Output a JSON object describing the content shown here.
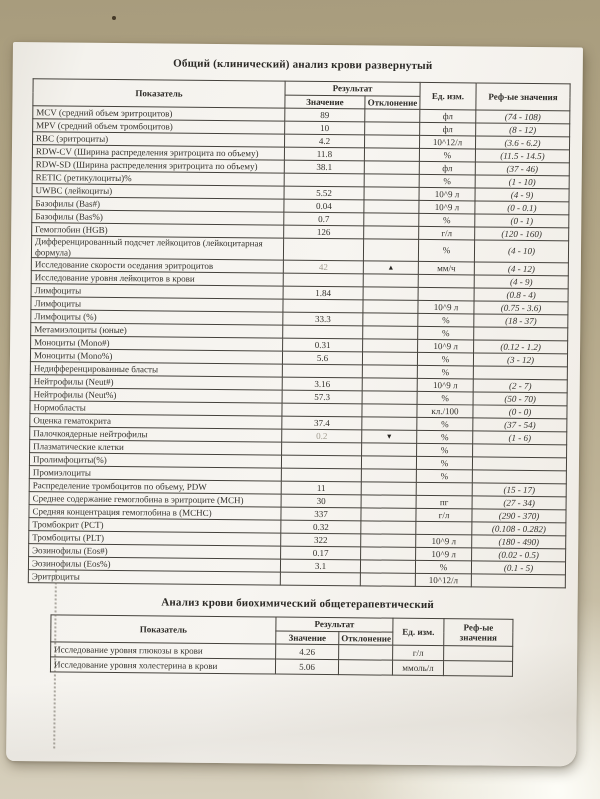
{
  "icons": {
    "up": "▲",
    "down": "▼"
  },
  "colors": {
    "background_tan": "#b2a687",
    "paper": "#f4f2ed",
    "table_border": "#45423c",
    "text": "#34322d",
    "faint_value": "#a39e92"
  },
  "tables": [
    {
      "title": "Общий (клинический) анализ крови развернутый",
      "header_labels": {
        "indicator": "Показатель",
        "result": "Результат",
        "value": "Значение",
        "deviation": "Отклонение",
        "unit": "Ед. изм.",
        "reference": "Реф-ые значения"
      },
      "rows": [
        {
          "name": "MCV (средний объем эритроцитов)",
          "value": "89",
          "deviation": "",
          "unit": "фл",
          "ref": "(74 - 108)"
        },
        {
          "name": "MPV (средний объем тромбоцитов)",
          "value": "10",
          "deviation": "",
          "unit": "фл",
          "ref": "(8 - 12)"
        },
        {
          "name": "RBC (эритроциты)",
          "value": "4.2",
          "deviation": "",
          "unit": "10^12/л",
          "ref": "(3.6 - 6.2)"
        },
        {
          "name": "RDW-CV (Ширина распределения эритроцита по объему)",
          "value": "11.8",
          "deviation": "",
          "unit": "%",
          "ref": "(11.5 - 14.5)"
        },
        {
          "name": "RDW-SD (Ширина распределения эритроцита по объему)",
          "value": "38.1",
          "deviation": "",
          "unit": "фл",
          "ref": "(37 - 46)"
        },
        {
          "name": "RETIC (ретикулоциты)%",
          "value": "",
          "deviation": "",
          "unit": "%",
          "ref": "(1 - 10)"
        },
        {
          "name": "UWBC (лейкоциты)",
          "value": "5.52",
          "deviation": "",
          "unit": "10^9 л",
          "ref": "(4 - 9)"
        },
        {
          "name": "Базофилы (Bas#)",
          "value": "0.04",
          "deviation": "",
          "unit": "10^9 л",
          "ref": "(0 - 0.1)"
        },
        {
          "name": "Базофилы (Bas%)",
          "value": "0.7",
          "deviation": "",
          "unit": "%",
          "ref": "(0 - 1)"
        },
        {
          "name": "Гемоглобин (HGB)",
          "value": "126",
          "deviation": "",
          "unit": "г/л",
          "ref": "(120 - 160)"
        },
        {
          "name": "Дифференцированный подсчет лейкоцитов (лейкоцитарная формула)",
          "value": "",
          "deviation": "",
          "unit": "%",
          "ref": "(4 - 10)"
        },
        {
          "name": "Исследование скорости оседания эритроцитов",
          "value": "42",
          "value_faint": true,
          "deviation": "up",
          "unit": "мм/ч",
          "ref": "(4 - 12)"
        },
        {
          "name": "Исследование уровня лейкоцитов в крови",
          "value": "",
          "deviation": "",
          "unit": "",
          "ref": "(4 - 9)"
        },
        {
          "name": "Лимфоциты",
          "value": "1.84",
          "deviation": "",
          "unit": "",
          "ref": "(0.8 - 4)"
        },
        {
          "name": "Лимфоциты",
          "value": "",
          "deviation": "",
          "unit": "10^9 л",
          "ref": "(0.75 - 3.6)"
        },
        {
          "name": "Лимфоциты (%)",
          "value": "33.3",
          "deviation": "",
          "unit": "%",
          "ref": "(18 - 37)"
        },
        {
          "name": "Метамиэлоциты (юные)",
          "value": "",
          "deviation": "",
          "unit": "%",
          "ref": ""
        },
        {
          "name": "Моноциты (Mono#)",
          "value": "0.31",
          "deviation": "",
          "unit": "10^9 л",
          "ref": "(0.12 - 1.2)"
        },
        {
          "name": "Моноциты (Mono%)",
          "value": "5.6",
          "deviation": "",
          "unit": "%",
          "ref": "(3 - 12)"
        },
        {
          "name": "Недифференцированные бласты",
          "value": "",
          "deviation": "",
          "unit": "%",
          "ref": ""
        },
        {
          "name": "Нейтрофилы (Neut#)",
          "value": "3.16",
          "deviation": "",
          "unit": "10^9 л",
          "ref": "(2 - 7)"
        },
        {
          "name": "Нейтрофилы (Neut%)",
          "value": "57.3",
          "deviation": "",
          "unit": "%",
          "ref": "(50 - 70)"
        },
        {
          "name": "Нормобласты",
          "value": "",
          "deviation": "",
          "unit": "кл./100",
          "ref": "(0 - 0)"
        },
        {
          "name": "Оценка гематокрита",
          "value": "37.4",
          "deviation": "",
          "unit": "%",
          "ref": "(37 - 54)"
        },
        {
          "name": "Палочкоядерные нейтрофилы",
          "value": "0.2",
          "value_faint": true,
          "deviation": "down",
          "unit": "%",
          "ref": "(1 - 6)"
        },
        {
          "name": "Плазматические клетки",
          "value": "",
          "deviation": "",
          "unit": "%",
          "ref": ""
        },
        {
          "name": "Пролимфоциты(%)",
          "value": "",
          "deviation": "",
          "unit": "%",
          "ref": ""
        },
        {
          "name": "Промиэлоциты",
          "value": "",
          "deviation": "",
          "unit": "%",
          "ref": ""
        },
        {
          "name": "Распределение тромбоцитов по объему, PDW",
          "value": "11",
          "deviation": "",
          "unit": "",
          "ref": "(15 - 17)"
        },
        {
          "name": "Среднее содержание гемоглобина в эритроците (MCH)",
          "value": "30",
          "deviation": "",
          "unit": "пг",
          "ref": "(27 - 34)"
        },
        {
          "name": "Средняя концентрация гемоглобина в (MCHC)",
          "value": "337",
          "deviation": "",
          "unit": "г/л",
          "ref": "(290 - 370)"
        },
        {
          "name": "Тромбокрит (PCT)",
          "value": "0.32",
          "deviation": "",
          "unit": "",
          "ref": "(0.108 - 0.282)"
        },
        {
          "name": "Тромбоциты (PLT)",
          "value": "322",
          "deviation": "",
          "unit": "10^9 л",
          "ref": "(180 - 490)"
        },
        {
          "name": "Эозинофилы (Eos#)",
          "value": "0.17",
          "deviation": "",
          "unit": "10^9 л",
          "ref": "(0.02 - 0.5)"
        },
        {
          "name": "Эозинофилы (Eos%)",
          "value": "3.1",
          "deviation": "",
          "unit": "%",
          "ref": "(0.1 - 5)"
        },
        {
          "name": "Эритроциты",
          "value": "",
          "deviation": "",
          "unit": "10^12/л",
          "ref": ""
        }
      ]
    },
    {
      "title": "Анализ крови биохимический общетерапевтический",
      "header_labels": {
        "indicator": "Показатель",
        "result": "Результат",
        "value": "Значение",
        "deviation": "Отклонение",
        "unit": "Ед. изм.",
        "reference": "Реф-ые значения"
      },
      "rows": [
        {
          "name": "Исследование уровня глюкозы в крови",
          "value": "4.26",
          "deviation": "",
          "unit": "г/л",
          "ref": ""
        },
        {
          "name": "Исследование уровня холестерина в крови",
          "value": "5.06",
          "deviation": "",
          "unit": "ммоль/л",
          "ref": ""
        }
      ]
    }
  ]
}
